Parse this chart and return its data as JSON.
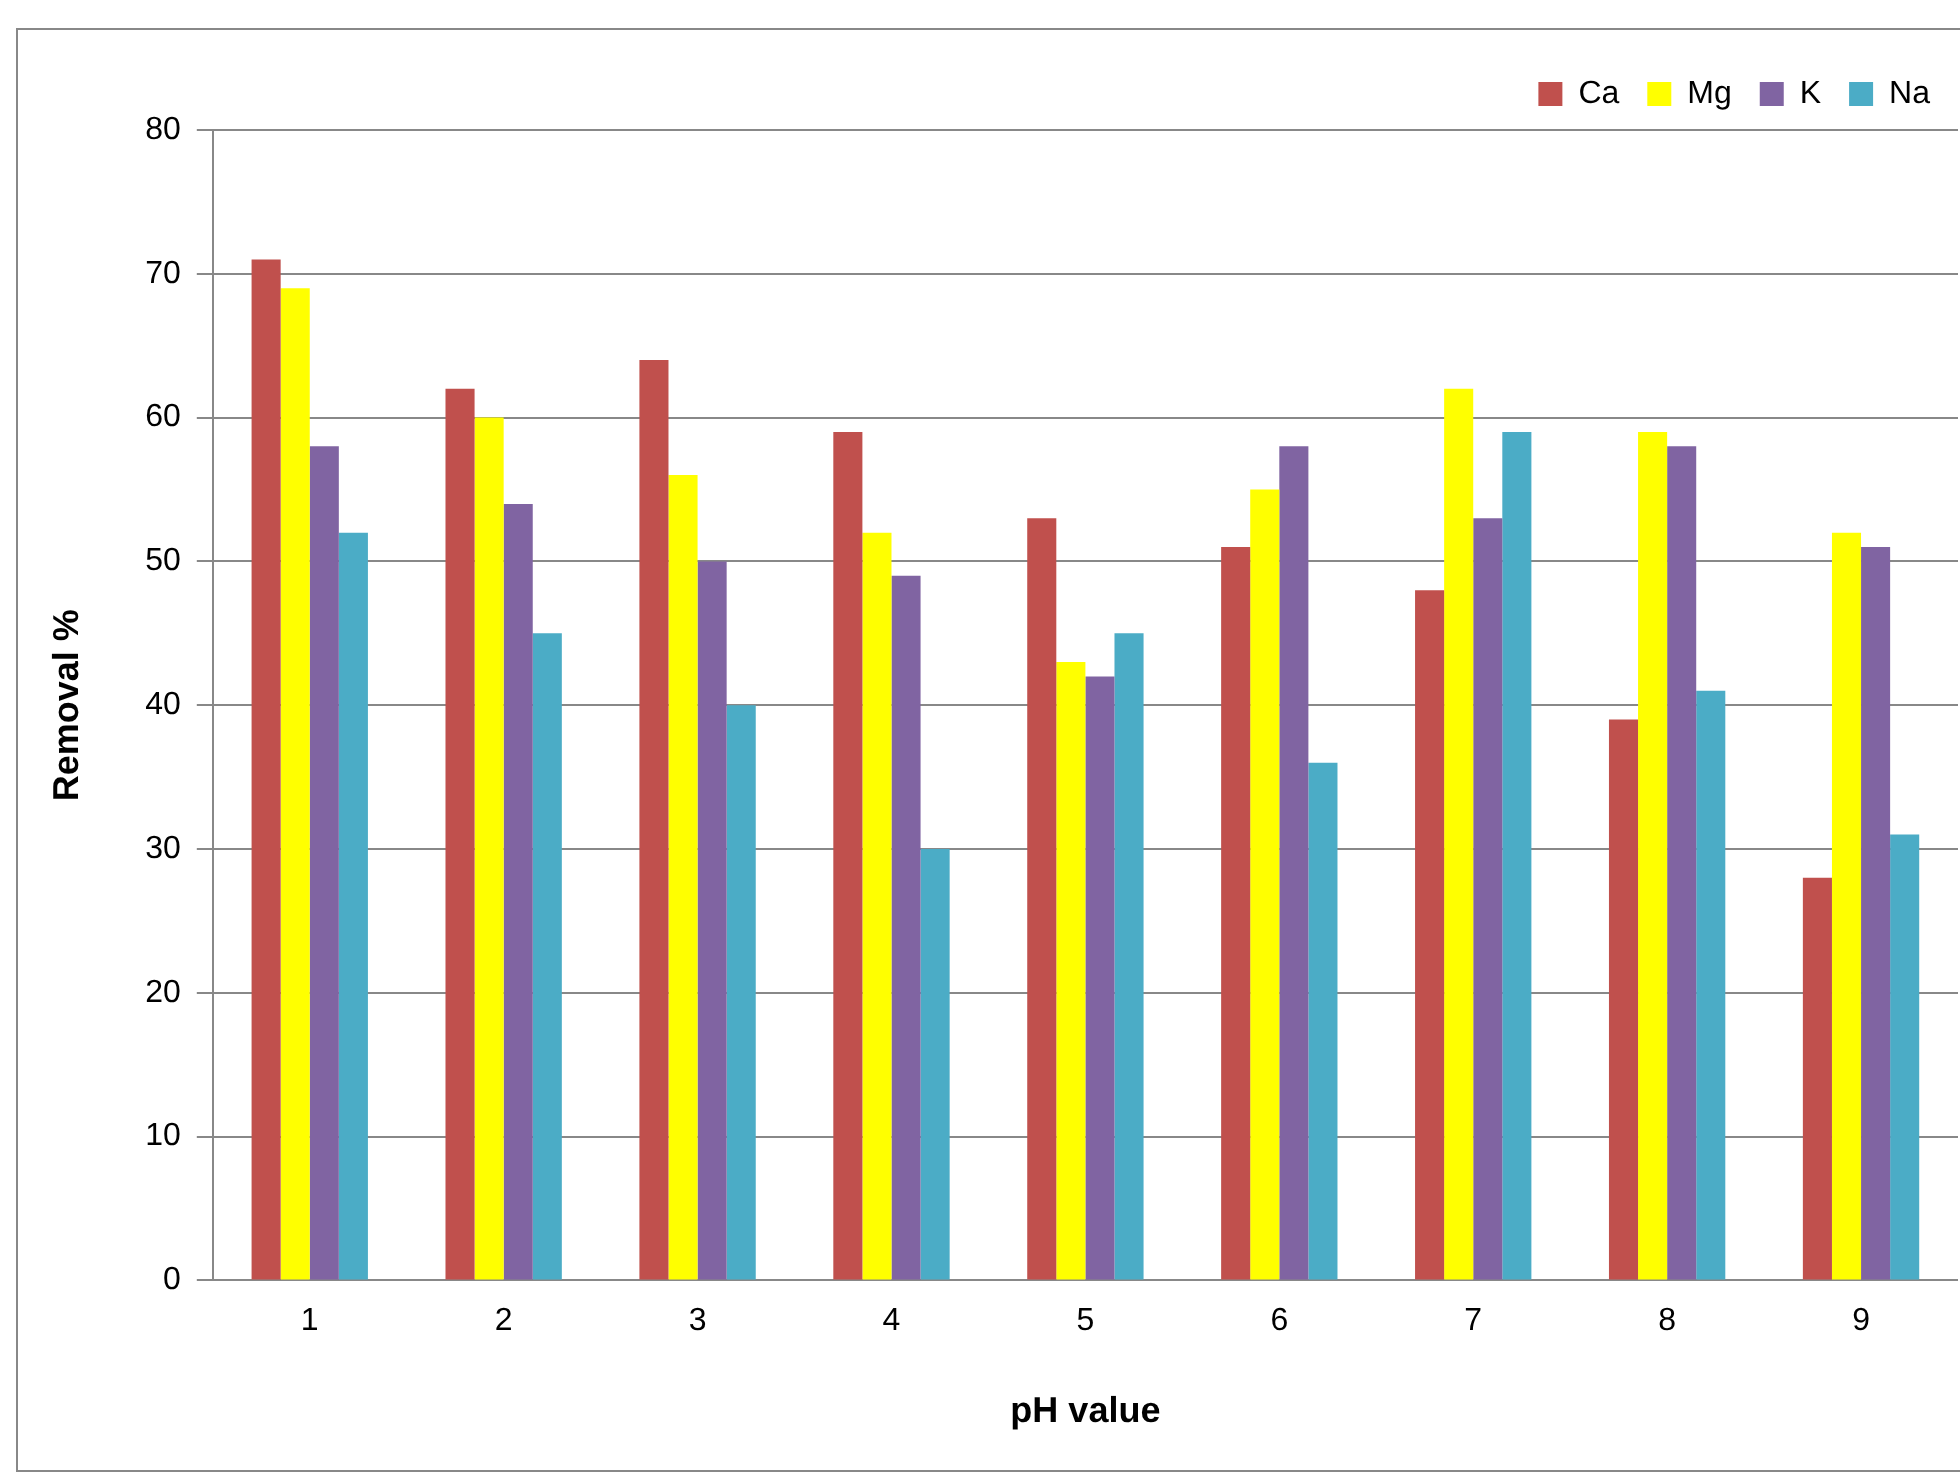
{
  "chart_data": {
    "type": "bar",
    "xlabel": "pH value",
    "ylabel": "Removal %",
    "categories": [
      "1",
      "2",
      "3",
      "4",
      "5",
      "6",
      "7",
      "8",
      "9"
    ],
    "series": [
      {
        "name": "Ca",
        "color": "#c0504d",
        "values": [
          71,
          62,
          64,
          59,
          53,
          51,
          48,
          39,
          28
        ]
      },
      {
        "name": "Mg",
        "color": "#ffff00",
        "values": [
          69,
          60,
          56,
          52,
          43,
          55,
          62,
          59,
          52
        ]
      },
      {
        "name": "K",
        "color": "#8064a2",
        "values": [
          58,
          54,
          50,
          49,
          42,
          58,
          53,
          58,
          51
        ]
      },
      {
        "name": "Na",
        "color": "#4bacc6",
        "values": [
          52,
          45,
          40,
          30,
          45,
          36,
          59,
          41,
          31
        ]
      }
    ],
    "ylim": [
      0,
      80
    ],
    "yticks": [
      0,
      10,
      20,
      30,
      40,
      50,
      60,
      70,
      80
    ],
    "grid": "y",
    "legend": "top right"
  }
}
